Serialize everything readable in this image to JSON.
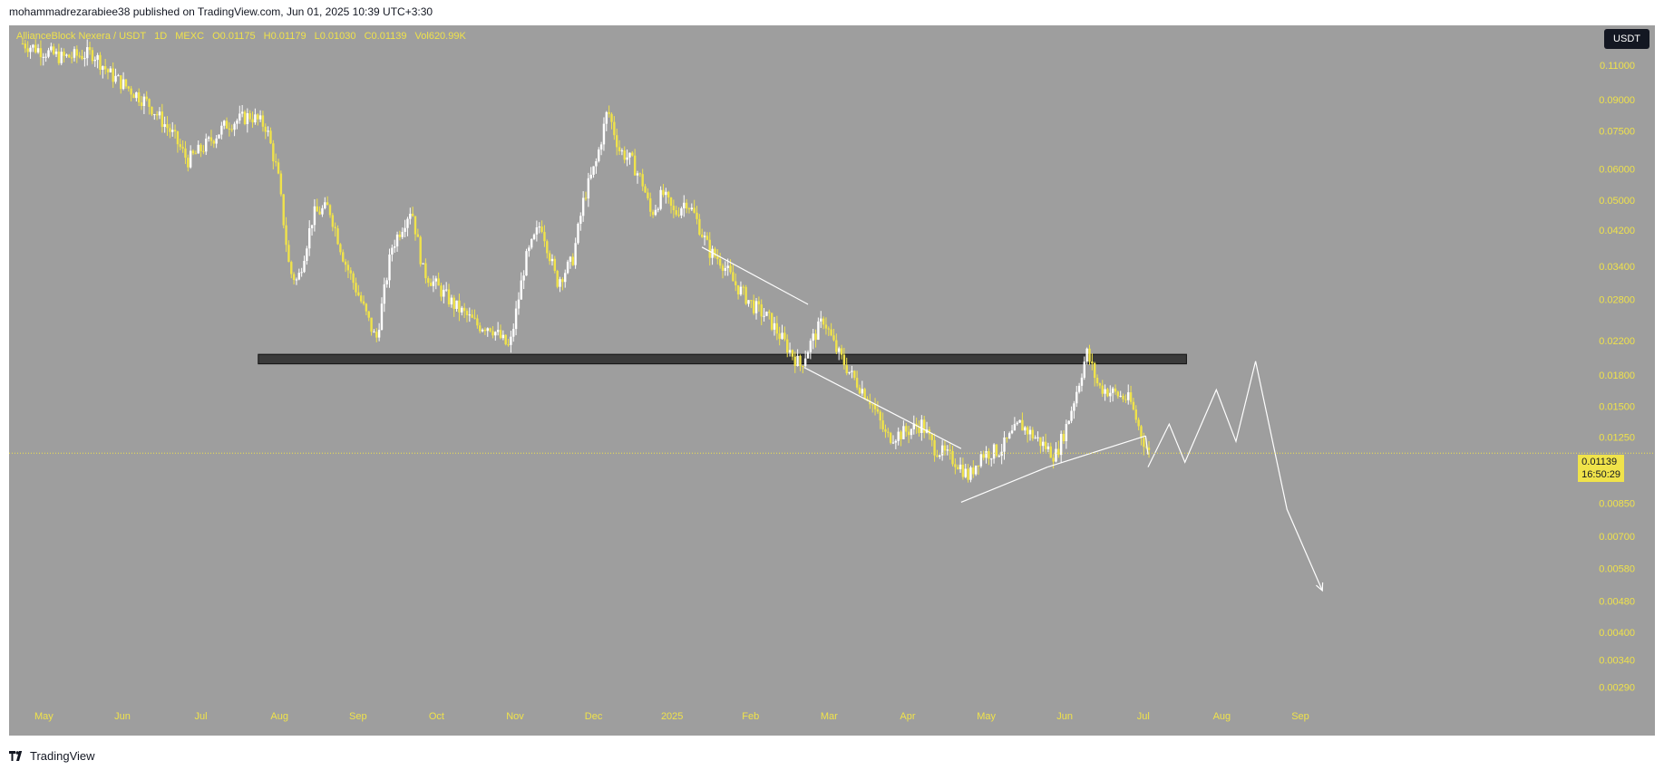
{
  "header": {
    "publisher_line": "mohammadrezarabiee38 published on TradingView.com, Jun 01, 2025 10:39 UTC+3:30"
  },
  "legend": {
    "symbol": "AllianceBlock Nexera / USDT",
    "interval": "1D",
    "exchange": "MEXC",
    "open": "O0.01175",
    "high": "H0.01179",
    "low": "L0.01030",
    "close": "C0.01139",
    "volume": "Vol620.99K"
  },
  "currency_button": "USDT",
  "last_price": {
    "price": "0.01139",
    "countdown": "16:50:29"
  },
  "footer": {
    "brand": "TradingView"
  },
  "colors": {
    "background": "#9e9e9e",
    "candle": "#f0e34a",
    "candle_alt": "#ffffff",
    "zone": "#3a3a3a",
    "annotation": "#ffffff"
  },
  "chart_data": {
    "type": "candlestick",
    "scale": "log",
    "x_tick_labels": [
      "May",
      "Jun",
      "Jul",
      "Aug",
      "Sep",
      "Oct",
      "Nov",
      "Dec",
      "2025",
      "Feb",
      "Mar",
      "Apr",
      "May",
      "Jun",
      "Jul",
      "Aug",
      "Sep"
    ],
    "y_tick_labels": [
      "0.11000",
      "0.09000",
      "0.07500",
      "0.06000",
      "0.05000",
      "0.04200",
      "0.03400",
      "0.02800",
      "0.02200",
      "0.01800",
      "0.01500",
      "0.01250",
      "0.00850",
      "0.00700",
      "0.00580",
      "0.00480",
      "0.00400",
      "0.00340",
      "0.00290"
    ],
    "y_ticks": [
      0.11,
      0.09,
      0.075,
      0.06,
      0.05,
      0.042,
      0.034,
      0.028,
      0.022,
      0.018,
      0.015,
      0.0125,
      0.0085,
      0.007,
      0.0058,
      0.0048,
      0.004,
      0.0034,
      0.0029
    ],
    "ylim": [
      0.0027,
      0.125
    ],
    "x_months": 16.3,
    "price_path": [
      [
        0.0,
        0.125
      ],
      [
        0.5,
        0.115
      ],
      [
        0.9,
        0.118
      ],
      [
        1.1,
        0.105
      ],
      [
        1.6,
        0.088
      ],
      [
        1.9,
        0.074
      ],
      [
        2.1,
        0.063
      ],
      [
        2.3,
        0.068
      ],
      [
        2.6,
        0.078
      ],
      [
        2.9,
        0.082
      ],
      [
        3.1,
        0.077
      ],
      [
        3.25,
        0.058
      ],
      [
        3.4,
        0.033
      ],
      [
        3.5,
        0.031
      ],
      [
        3.7,
        0.046
      ],
      [
        3.9,
        0.048
      ],
      [
        4.1,
        0.035
      ],
      [
        4.3,
        0.028
      ],
      [
        4.5,
        0.022
      ],
      [
        4.7,
        0.038
      ],
      [
        4.95,
        0.048
      ],
      [
        5.1,
        0.033
      ],
      [
        5.5,
        0.027
      ],
      [
        5.8,
        0.024
      ],
      [
        5.95,
        0.024
      ],
      [
        6.2,
        0.021
      ],
      [
        6.4,
        0.035
      ],
      [
        6.6,
        0.044
      ],
      [
        6.8,
        0.031
      ],
      [
        7.0,
        0.035
      ],
      [
        7.15,
        0.051
      ],
      [
        7.3,
        0.062
      ],
      [
        7.45,
        0.085
      ],
      [
        7.6,
        0.067
      ],
      [
        7.75,
        0.063
      ],
      [
        7.9,
        0.055
      ],
      [
        8.0,
        0.046
      ],
      [
        8.15,
        0.052
      ],
      [
        8.3,
        0.046
      ],
      [
        8.45,
        0.05
      ],
      [
        8.55,
        0.046
      ],
      [
        8.75,
        0.037
      ],
      [
        8.9,
        0.035
      ],
      [
        9.05,
        0.031
      ],
      [
        9.3,
        0.027
      ],
      [
        9.5,
        0.025
      ],
      [
        9.75,
        0.021
      ],
      [
        9.9,
        0.019
      ],
      [
        10.05,
        0.022
      ],
      [
        10.2,
        0.025
      ],
      [
        10.35,
        0.021
      ],
      [
        10.55,
        0.018
      ],
      [
        10.8,
        0.0155
      ],
      [
        11.0,
        0.0125
      ],
      [
        11.2,
        0.0128
      ],
      [
        11.45,
        0.0135
      ],
      [
        11.6,
        0.0118
      ],
      [
        11.9,
        0.0108
      ],
      [
        12.05,
        0.0099
      ],
      [
        12.2,
        0.0113
      ],
      [
        12.45,
        0.0116
      ],
      [
        12.7,
        0.0135
      ],
      [
        12.95,
        0.0122
      ],
      [
        13.15,
        0.0112
      ],
      [
        13.3,
        0.0135
      ],
      [
        13.45,
        0.0172
      ],
      [
        13.55,
        0.0205
      ],
      [
        13.7,
        0.0168
      ],
      [
        13.95,
        0.016
      ],
      [
        14.1,
        0.0155
      ],
      [
        14.25,
        0.0126
      ],
      [
        14.35,
        0.0113
      ]
    ],
    "support_zone": {
      "x_start": 3.0,
      "x_end": 14.82,
      "price_low": 0.0192,
      "price_high": 0.0203
    },
    "annotation_lines": [
      [
        [
          8.65,
          0.038
        ],
        [
          10.0,
          0.0272
        ]
      ],
      [
        [
          9.95,
          0.0188
        ],
        [
          11.95,
          0.0117
        ]
      ],
      [
        [
          11.95,
          0.00855
        ],
        [
          13.05,
          0.0105
        ]
      ],
      [
        [
          13.05,
          0.0105
        ],
        [
          14.3,
          0.0126
        ]
      ],
      [
        [
          14.3,
          0.0126
        ],
        [
          14.33,
          0.0113
        ]
      ]
    ],
    "projection_path": [
      [
        14.33,
        0.0105
      ],
      [
        14.6,
        0.0135
      ],
      [
        14.8,
        0.0108
      ],
      [
        15.2,
        0.0165
      ],
      [
        15.45,
        0.0122
      ],
      [
        15.7,
        0.0195
      ],
      [
        16.1,
        0.0082
      ],
      [
        16.55,
        0.0051
      ]
    ],
    "last_price": 0.01139
  }
}
